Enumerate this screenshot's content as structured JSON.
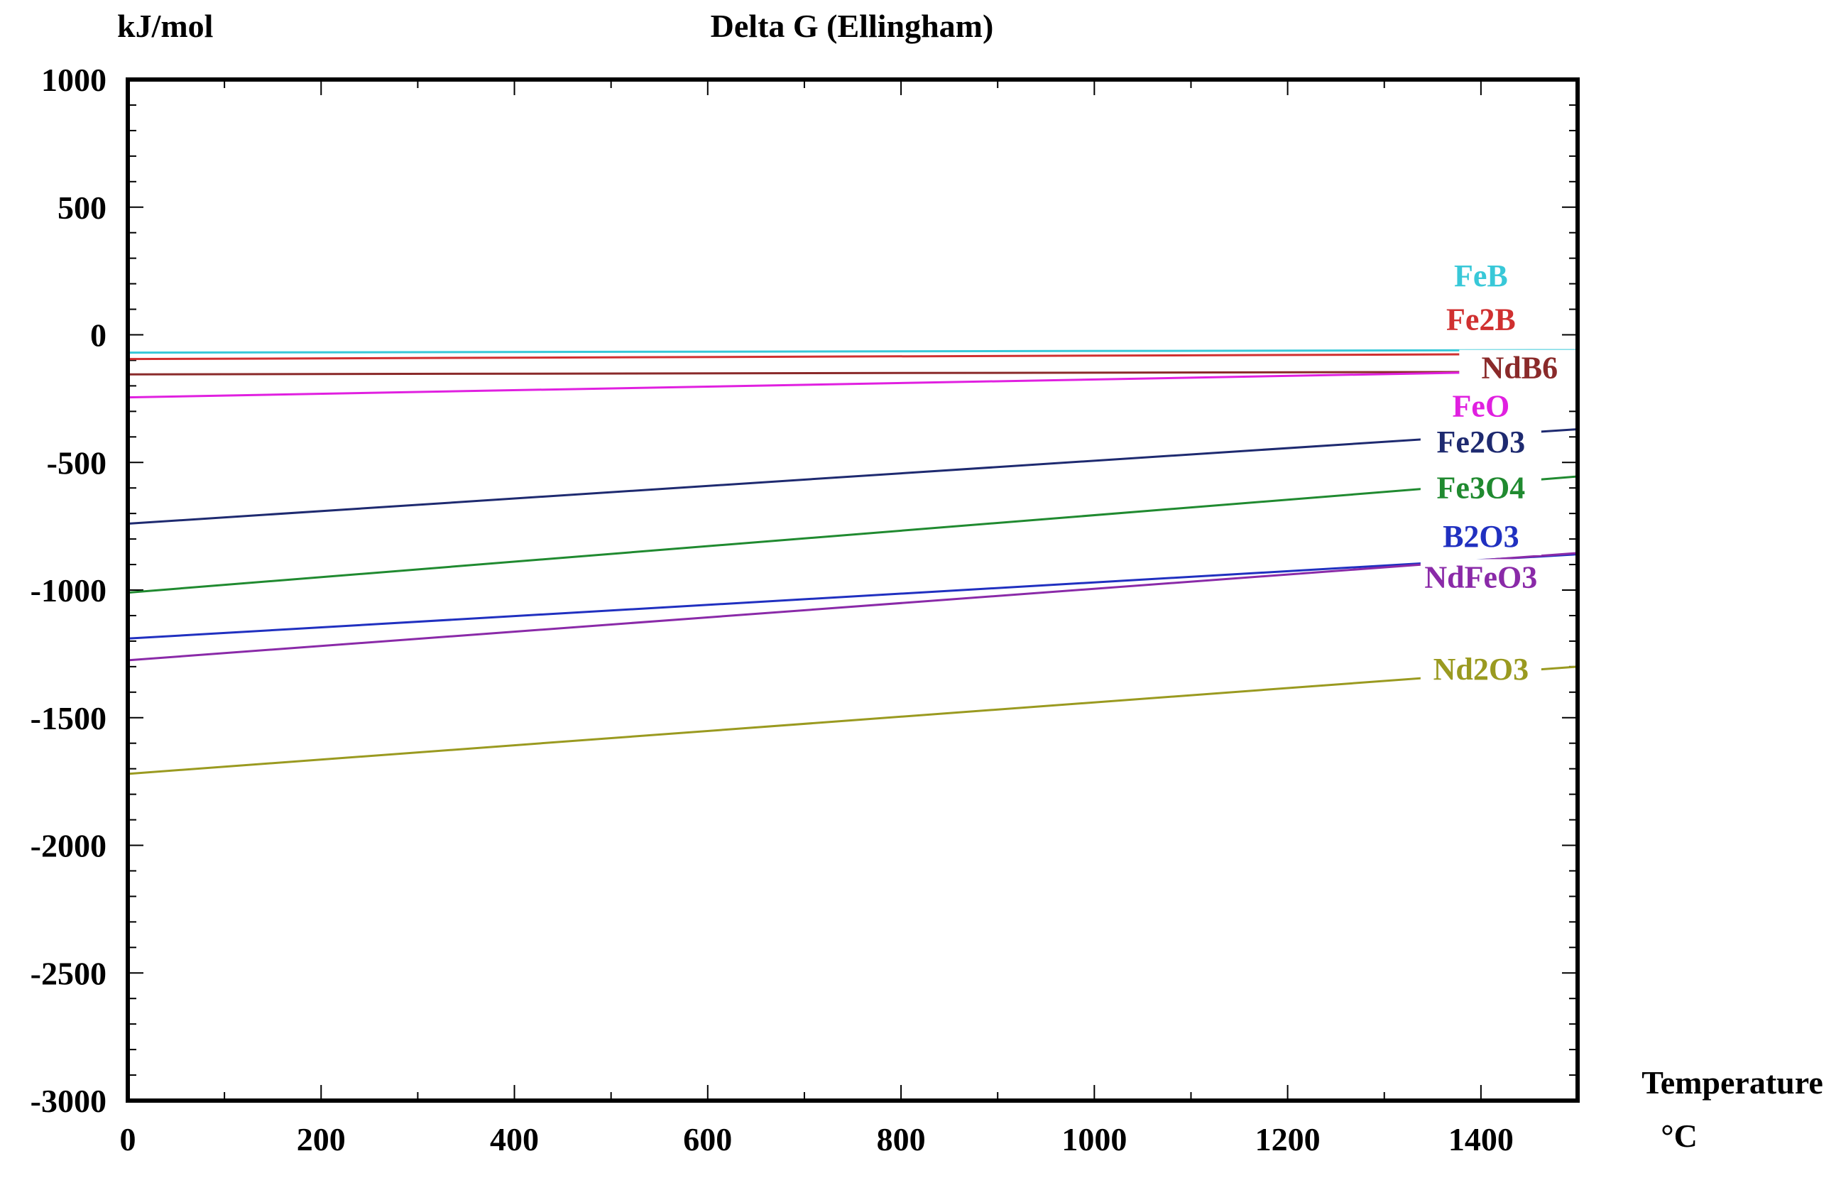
{
  "chart_data": {
    "type": "line",
    "title": "Delta G (Ellingham)",
    "ylabel": "kJ/mol",
    "xlabel": "Temperature",
    "xunit": "°C",
    "xlim": [
      0,
      1500
    ],
    "ylim": [
      -3000,
      1000
    ],
    "x_ticks": [
      0,
      200,
      400,
      600,
      800,
      1000,
      1200,
      1400
    ],
    "y_ticks": [
      1000,
      500,
      0,
      -500,
      -1000,
      -1500,
      -2000,
      -2500,
      -3000
    ],
    "x_minor_step": 100,
    "y_minor_step": 100,
    "grid": false,
    "series": [
      {
        "name": "FeB",
        "color": "#38c8d8",
        "x": [
          0,
          1500
        ],
        "y": [
          -70,
          -60
        ],
        "label_at": [
          1400,
          190
        ]
      },
      {
        "name": "Fe2B",
        "color": "#d03030",
        "x": [
          0,
          1500
        ],
        "y": [
          -95,
          -75
        ],
        "label_at": [
          1400,
          20
        ]
      },
      {
        "name": "NdB6",
        "color": "#8a2a2a",
        "x": [
          0,
          1500
        ],
        "y": [
          -155,
          -145
        ],
        "label_at": [
          1440,
          -170
        ]
      },
      {
        "name": "FeO",
        "color": "#e020e0",
        "x": [
          0,
          1500
        ],
        "y": [
          -245,
          -140
        ],
        "label_at": [
          1400,
          -320
        ]
      },
      {
        "name": "Fe2O3",
        "color": "#1e2a70",
        "x": [
          0,
          1500
        ],
        "y": [
          -740,
          -370
        ],
        "label_at": [
          1400,
          -460
        ]
      },
      {
        "name": "Fe3O4",
        "color": "#208a30",
        "x": [
          0,
          1500
        ],
        "y": [
          -1010,
          -555
        ],
        "label_at": [
          1400,
          -640
        ]
      },
      {
        "name": "B2O3",
        "color": "#2030c0",
        "x": [
          0,
          1500
        ],
        "y": [
          -1190,
          -860
        ],
        "label_at": [
          1400,
          -830
        ]
      },
      {
        "name": "NdFeO3",
        "color": "#8a2aa8",
        "x": [
          0,
          1500
        ],
        "y": [
          -1275,
          -855
        ],
        "label_at": [
          1400,
          -990
        ]
      },
      {
        "name": "Nd2O3",
        "color": "#9a9a20",
        "x": [
          0,
          1500
        ],
        "y": [
          -1720,
          -1300
        ],
        "label_at": [
          1400,
          -1350
        ]
      }
    ]
  }
}
